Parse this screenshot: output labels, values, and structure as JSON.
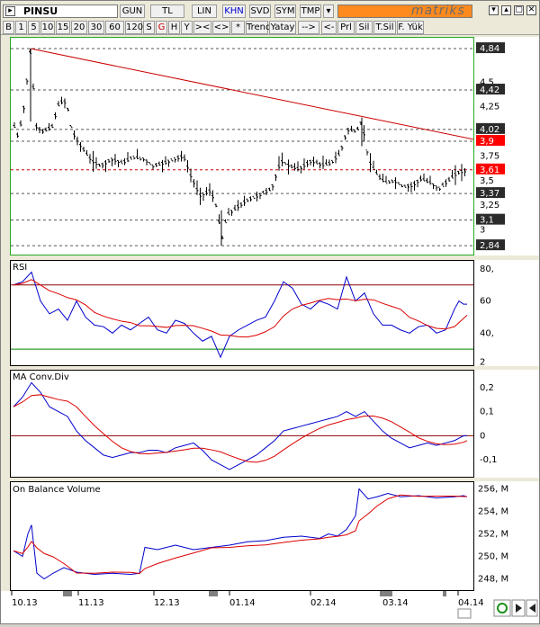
{
  "toolbar": {
    "symbol": "PINSU",
    "period_buttons": [
      "GUN",
      "TL",
      "LIN",
      "KHN",
      "SVD",
      "SYM",
      "TMP"
    ],
    "active_period": "KHN",
    "brand": "matriks",
    "window_icons": [
      "▾",
      "▴",
      "▢",
      "✕"
    ]
  },
  "toolbar2": {
    "buttons": [
      "B",
      "1",
      "5",
      "10",
      "15",
      "20",
      "30",
      "60",
      "120",
      "S",
      "G",
      "H",
      "Y",
      "><",
      "<>",
      "*",
      "Trend",
      "Yatay",
      "-->",
      "<--",
      "Prl",
      "Sil",
      "T.Sil",
      "F. Yük"
    ],
    "active": "G"
  },
  "price_panel": {
    "levels_boxed": [
      "4,84",
      "4,42",
      "4,02",
      "3,9",
      "3,61",
      "3,37",
      "3,1",
      "2,84"
    ],
    "levels_plain": [
      "4,5",
      "4,25",
      "3,75",
      "3,5",
      "3,25",
      "3"
    ],
    "highlight_levels": [
      "3,9",
      "3,61"
    ]
  },
  "rsi_panel": {
    "title": "RSI",
    "ticks": [
      "80,",
      "60",
      "40,",
      "2"
    ]
  },
  "macd_panel": {
    "title": "MA Conv.Div",
    "ticks": [
      "0,2",
      "0,1",
      "0",
      "-0,1"
    ]
  },
  "obv_panel": {
    "title": "On Balance Volume",
    "ticks": [
      "256, M",
      "254, M",
      "252, M",
      "250, M",
      "248, M"
    ]
  },
  "xaxis": {
    "labels": [
      "10.13",
      "11.13",
      "12.13",
      "01.14",
      "02.14",
      "03.14",
      "04.14"
    ]
  },
  "colors": {
    "price": "#000000",
    "trendline": "#cc0000",
    "rsi_line": "#0000cc",
    "avg_line": "#dd0000",
    "highlight": "#ff0000",
    "level_box": "#2b2b2b"
  }
}
